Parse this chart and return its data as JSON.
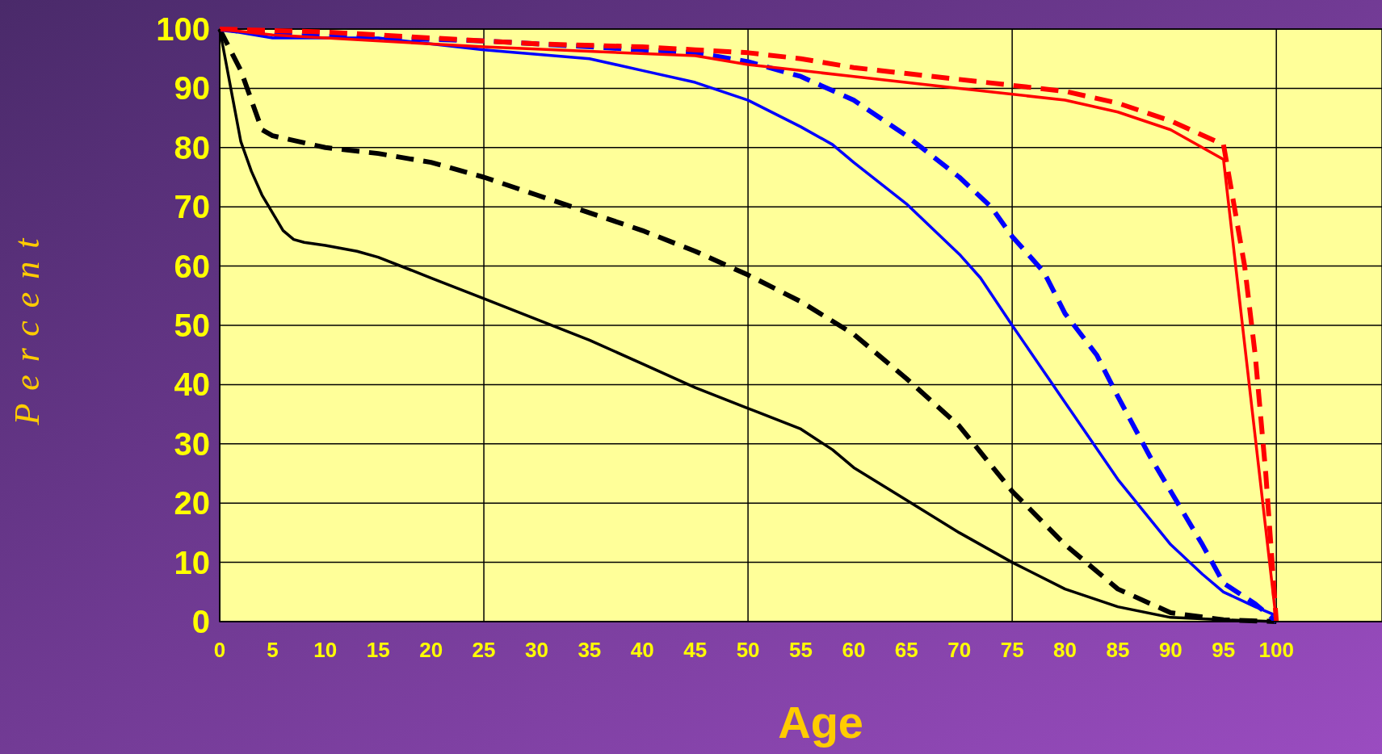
{
  "chart_data": {
    "type": "line",
    "xlabel": "Age",
    "ylabel": "Percent",
    "xlim": [
      0,
      110
    ],
    "xticks": [
      0,
      5,
      10,
      15,
      20,
      25,
      30,
      35,
      40,
      45,
      50,
      55,
      60,
      65,
      70,
      75,
      80,
      85,
      90,
      95,
      100
    ],
    "ylim": [
      0,
      100
    ],
    "yticks": [
      0,
      10,
      20,
      30,
      40,
      50,
      60,
      70,
      80,
      90,
      100
    ],
    "grid": "y",
    "ref_lines": [
      {
        "axis": "x",
        "value": 25
      },
      {
        "axis": "x",
        "value": 50
      },
      {
        "axis": "x",
        "value": 75
      },
      {
        "axis": "x",
        "value": 100
      }
    ],
    "series": [
      {
        "color": "#000000",
        "line_style": "solid",
        "x": [
          0,
          2,
          3,
          4,
          5,
          6,
          7,
          8,
          10,
          13,
          15,
          20,
          25,
          30,
          35,
          40,
          45,
          50,
          55,
          58,
          60,
          65,
          70,
          75,
          80,
          85,
          90,
          95,
          100
        ],
        "values": [
          100,
          81,
          76,
          72,
          69,
          66,
          64.5,
          64,
          63.5,
          62.5,
          61.5,
          58,
          54.5,
          51,
          47.5,
          43.5,
          39.5,
          36,
          32.5,
          29,
          26,
          20.5,
          15,
          10,
          5.5,
          2.5,
          0.7,
          0.3,
          0
        ]
      },
      {
        "color": "#000000",
        "line_style": "dashed",
        "x": [
          0,
          2,
          3,
          4,
          5,
          10,
          15,
          20,
          25,
          30,
          35,
          40,
          45,
          50,
          55,
          60,
          65,
          70,
          75,
          80,
          85,
          90,
          95,
          100
        ],
        "values": [
          100,
          93,
          88,
          83,
          82,
          80,
          79,
          77.5,
          75,
          72,
          69,
          66,
          62.5,
          58.5,
          54,
          48.5,
          41,
          33,
          22,
          13,
          5.5,
          1.5,
          0.3,
          0
        ]
      },
      {
        "color": "#0000ff",
        "line_style": "solid",
        "x": [
          0,
          5,
          15,
          25,
          35,
          40,
          45,
          50,
          55,
          58,
          60,
          65,
          70,
          72,
          75,
          80,
          85,
          90,
          93,
          95,
          98,
          100
        ],
        "values": [
          100,
          98.5,
          98.5,
          96.5,
          95,
          93,
          91,
          88,
          83.5,
          80.5,
          77.5,
          70.5,
          62,
          58,
          50,
          37,
          24,
          13,
          8,
          5,
          2.5,
          1
        ]
      },
      {
        "color": "#0000ff",
        "line_style": "dashed",
        "x": [
          0,
          5,
          25,
          45,
          50,
          55,
          60,
          65,
          70,
          73,
          75,
          78,
          80,
          83,
          85,
          88,
          90,
          93,
          95,
          98,
          100
        ],
        "values": [
          100,
          99,
          98,
          96,
          94.5,
          92,
          88,
          82,
          75,
          70,
          65,
          59,
          52,
          45,
          38,
          28,
          22,
          13,
          6.5,
          3,
          0
        ]
      },
      {
        "color": "#ff0000",
        "line_style": "solid",
        "x": [
          0,
          5,
          25,
          45,
          50,
          60,
          70,
          80,
          85,
          90,
          95,
          100
        ],
        "values": [
          100,
          99,
          97,
          95.5,
          94,
          92,
          90,
          88,
          86,
          83,
          78,
          0
        ]
      },
      {
        "color": "#ff0000",
        "line_style": "dashed",
        "x": [
          0,
          10,
          20,
          30,
          40,
          45,
          50,
          55,
          60,
          65,
          70,
          75,
          80,
          85,
          90,
          95,
          97,
          98,
          99,
          100
        ],
        "values": [
          100,
          99.5,
          98.5,
          97.5,
          97,
          96.5,
          96,
          95,
          93.5,
          92.5,
          91.5,
          90.5,
          89.5,
          87.5,
          84.5,
          80.5,
          60,
          45,
          25,
          0
        ]
      }
    ]
  }
}
